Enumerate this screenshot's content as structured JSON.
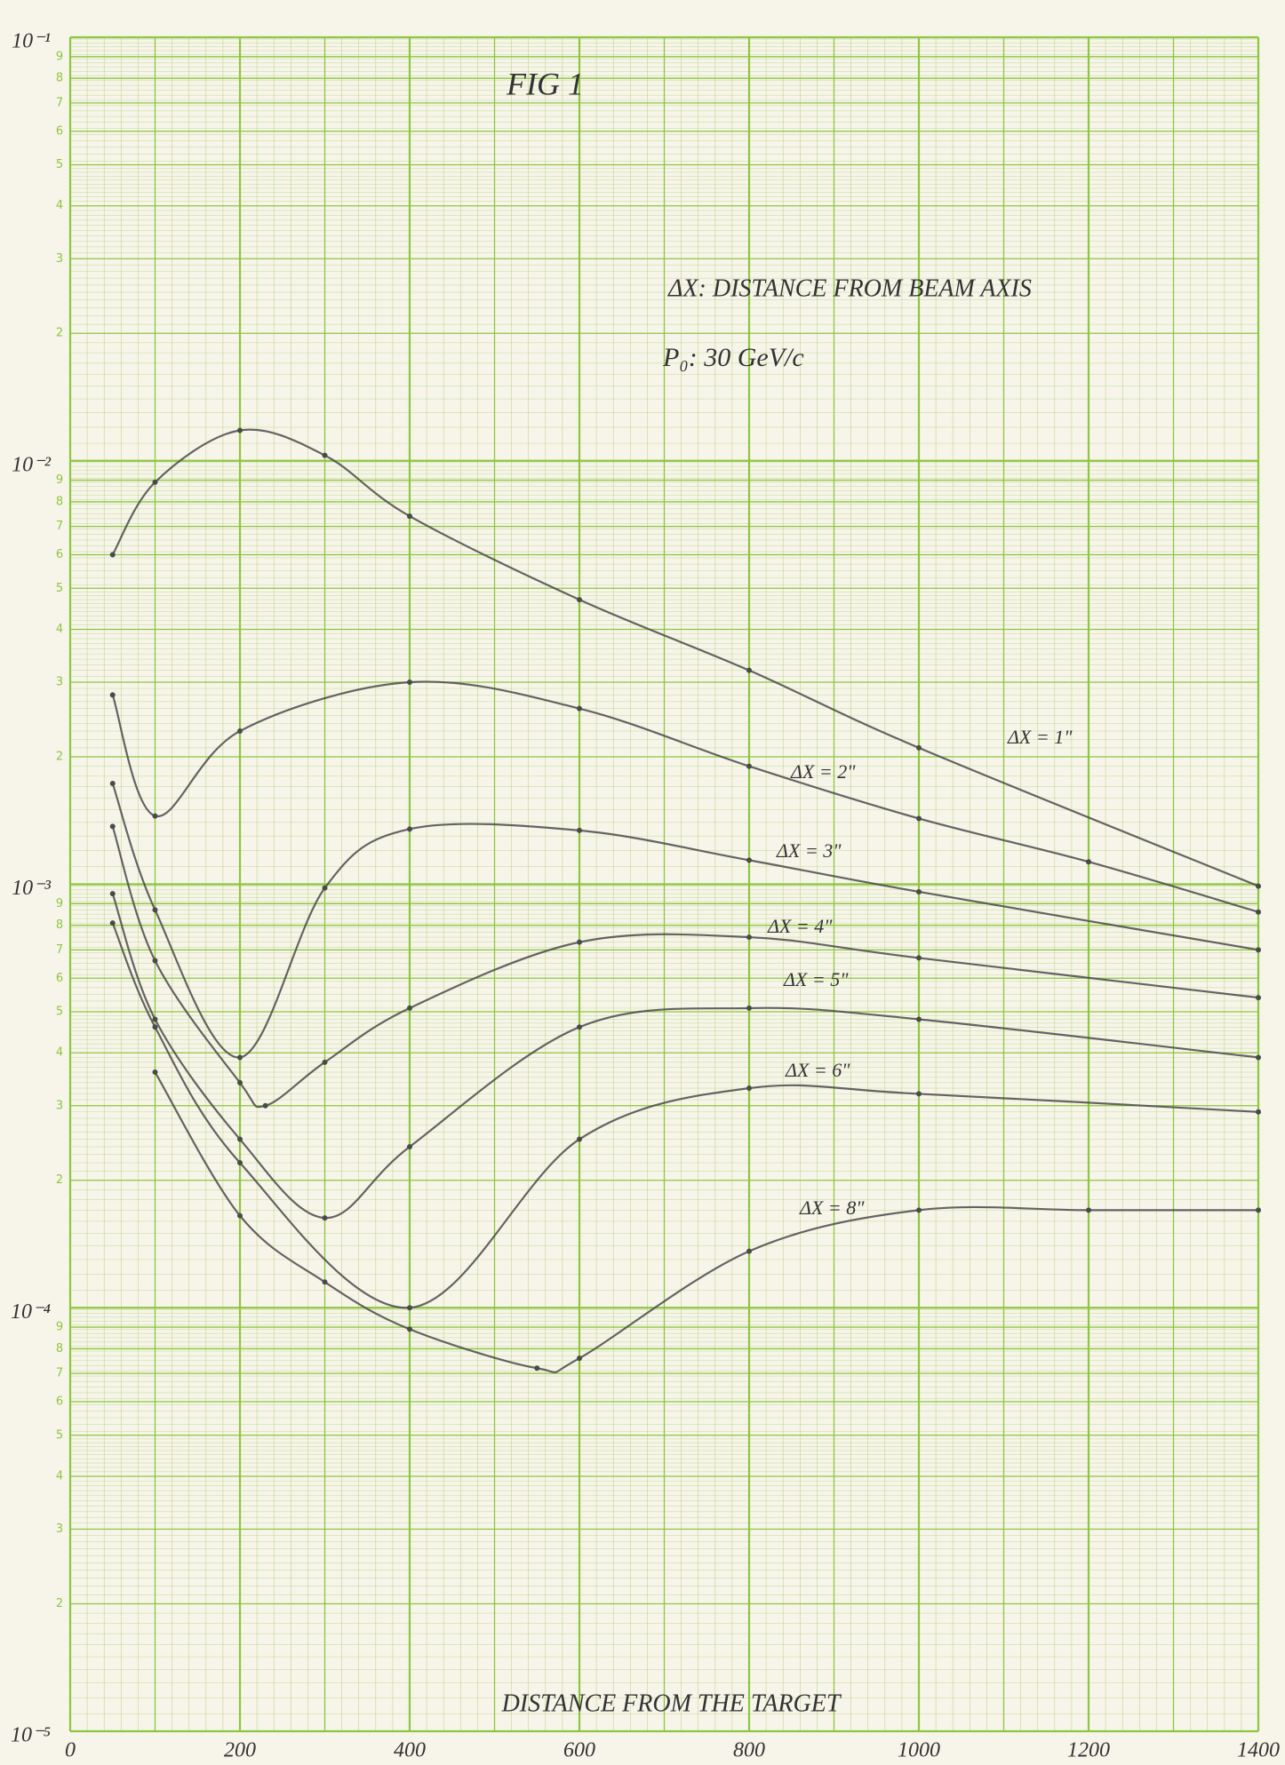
{
  "chart_data": {
    "type": "line",
    "title": "FIG 1",
    "annotations": [
      "ΔX: DISTANCE FROM BEAM AXIS",
      "P₀: 30 GeV/c"
    ],
    "x_label": "DISTANCE FROM THE TARGET",
    "xlim": [
      0,
      1400
    ],
    "xticks": [
      0,
      200,
      400,
      600,
      800,
      1000,
      1200,
      1400
    ],
    "ylim": [
      1e-05,
      0.1
    ],
    "log_y": true,
    "grid": true,
    "grid_color": "#8dc63f",
    "yticks": [
      {
        "value": 1e-05,
        "label": "10⁻⁵"
      },
      {
        "value": 0.0001,
        "label": "10⁻⁴"
      },
      {
        "value": 0.001,
        "label": "10⁻³"
      },
      {
        "value": 0.01,
        "label": "10⁻²"
      },
      {
        "value": 0.1,
        "label": "10⁻¹"
      }
    ],
    "minor_yticks": [
      {
        "value": 2e-05,
        "label": "2"
      },
      {
        "value": 3e-05,
        "label": "3"
      },
      {
        "value": 4e-05,
        "label": "4"
      },
      {
        "value": 5e-05,
        "label": "5"
      },
      {
        "value": 6e-05,
        "label": "6"
      },
      {
        "value": 7e-05,
        "label": "7"
      },
      {
        "value": 8e-05,
        "label": "8"
      },
      {
        "value": 9e-05,
        "label": "9"
      },
      {
        "value": 0.0002,
        "label": "2"
      },
      {
        "value": 0.0003,
        "label": "3"
      },
      {
        "value": 0.0004,
        "label": "4"
      },
      {
        "value": 0.0005,
        "label": "5"
      },
      {
        "value": 0.0006,
        "label": "6"
      },
      {
        "value": 0.0007,
        "label": "7"
      },
      {
        "value": 0.0008,
        "label": "8"
      },
      {
        "value": 0.0009,
        "label": "9"
      },
      {
        "value": 0.002,
        "label": "2"
      },
      {
        "value": 0.003,
        "label": "3"
      },
      {
        "value": 0.004,
        "label": "4"
      },
      {
        "value": 0.005,
        "label": "5"
      },
      {
        "value": 0.006,
        "label": "6"
      },
      {
        "value": 0.007,
        "label": "7"
      },
      {
        "value": 0.008,
        "label": "8"
      },
      {
        "value": 0.009,
        "label": "9"
      },
      {
        "value": 0.02,
        "label": "2"
      },
      {
        "value": 0.03,
        "label": "3"
      },
      {
        "value": 0.04,
        "label": "4"
      },
      {
        "value": 0.05,
        "label": "5"
      },
      {
        "value": 0.06,
        "label": "6"
      },
      {
        "value": 0.07,
        "label": "7"
      },
      {
        "value": 0.08,
        "label": "8"
      },
      {
        "value": 0.09,
        "label": "9"
      }
    ],
    "series": [
      {
        "name": "ΔX = 1\"",
        "color": "#4a4a4a",
        "x": [
          50,
          100,
          200,
          300,
          400,
          600,
          800,
          1000,
          1400
        ],
        "values": [
          0.006,
          0.0089,
          0.0118,
          0.0103,
          0.0074,
          0.0047,
          0.0032,
          0.0021,
          0.00099
        ]
      },
      {
        "name": "ΔX = 2\"",
        "color": "#4a4a4a",
        "x": [
          50,
          100,
          200,
          400,
          600,
          800,
          1000,
          1200,
          1400
        ],
        "values": [
          0.0028,
          0.00145,
          0.0023,
          0.003,
          0.0026,
          0.0019,
          0.00143,
          0.00113,
          0.00086
        ]
      },
      {
        "name": "ΔX = 3\"",
        "color": "#4a4a4a",
        "x": [
          50,
          100,
          200,
          300,
          400,
          600,
          800,
          1000,
          1400
        ],
        "values": [
          0.00173,
          0.00087,
          0.00039,
          0.00098,
          0.00135,
          0.00134,
          0.00114,
          0.00096,
          0.0007
        ]
      },
      {
        "name": "ΔX = 4\"",
        "color": "#4a4a4a",
        "x": [
          50,
          100,
          200,
          230,
          300,
          400,
          600,
          800,
          1000,
          1400
        ],
        "values": [
          0.00137,
          0.00066,
          0.00034,
          0.0003,
          0.00038,
          0.00051,
          0.00073,
          0.00075,
          0.00067,
          0.00054
        ]
      },
      {
        "name": "ΔX = 5\"",
        "color": "#4a4a4a",
        "x": [
          50,
          100,
          200,
          300,
          400,
          600,
          800,
          1000,
          1400
        ],
        "values": [
          0.00095,
          0.00048,
          0.00025,
          0.000163,
          0.00024,
          0.00046,
          0.00051,
          0.00048,
          0.00039
        ]
      },
      {
        "name": "ΔX = 6\"",
        "color": "#4a4a4a",
        "x": [
          50,
          100,
          200,
          400,
          600,
          800,
          1000,
          1400
        ],
        "values": [
          0.00081,
          0.00046,
          0.00022,
          0.0001,
          0.00025,
          0.00033,
          0.00032,
          0.00029
        ]
      },
      {
        "name": "ΔX = 8\"",
        "color": "#4a4a4a",
        "x": [
          100,
          200,
          300,
          400,
          550,
          600,
          800,
          1000,
          1200,
          1400
        ],
        "values": [
          0.00036,
          0.000165,
          0.000115,
          8.9e-05,
          7.2e-05,
          7.6e-05,
          0.000136,
          0.00017,
          0.00017,
          0.00017
        ]
      }
    ]
  }
}
